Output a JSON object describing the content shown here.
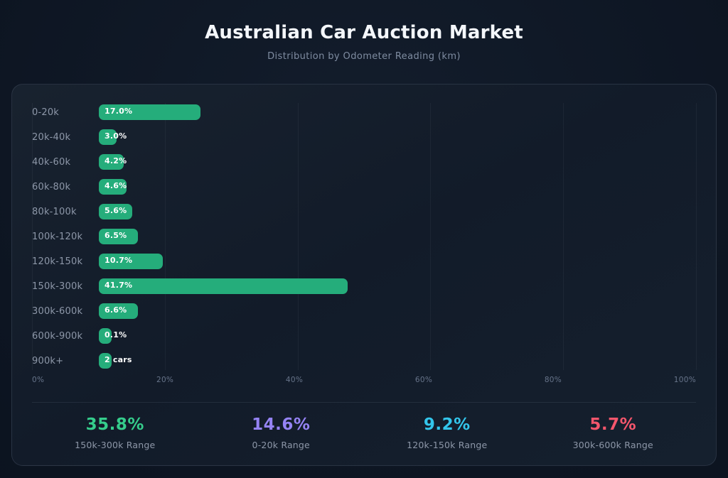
{
  "header": {
    "title": "Australian Car Auction Market",
    "subtitle": "Distribution by Odometer Reading (km)"
  },
  "chart_data": {
    "type": "bar",
    "orientation": "horizontal",
    "title": "Australian Car Auction Market",
    "subtitle": "Distribution by Odometer Reading (km)",
    "categories": [
      "0-20k",
      "20k-40k",
      "40k-60k",
      "60k-80k",
      "80k-100k",
      "100k-120k",
      "120k-150k",
      "150k-300k",
      "300k-600k",
      "600k-900k",
      "900k+"
    ],
    "values": [
      17.0,
      3.0,
      4.2,
      4.6,
      5.6,
      6.5,
      10.7,
      41.7,
      6.6,
      0.1,
      null
    ],
    "bar_labels": [
      "17.0%",
      "3.0%",
      "4.2%",
      "4.6%",
      "5.6%",
      "6.5%",
      "10.7%",
      "41.7%",
      "6.6%",
      "0.1%",
      "2 cars"
    ],
    "x_ticks": [
      "0%",
      "20%",
      "40%",
      "60%",
      "80%",
      "100%"
    ],
    "xlim": [
      0,
      100
    ],
    "grid": true,
    "legend": false,
    "bar_color": "#25ad7b"
  },
  "summary_stats": [
    {
      "value": "35.8%",
      "label": "150k-300k Range",
      "color": "#35cd8c"
    },
    {
      "value": "14.6%",
      "label": "0-20k Range",
      "color": "#9583f4"
    },
    {
      "value": "9.2%",
      "label": "120k-150k Range",
      "color": "#33c6ec"
    },
    {
      "value": "5.7%",
      "label": "300k-600k Range",
      "color": "#f4566c"
    }
  ]
}
